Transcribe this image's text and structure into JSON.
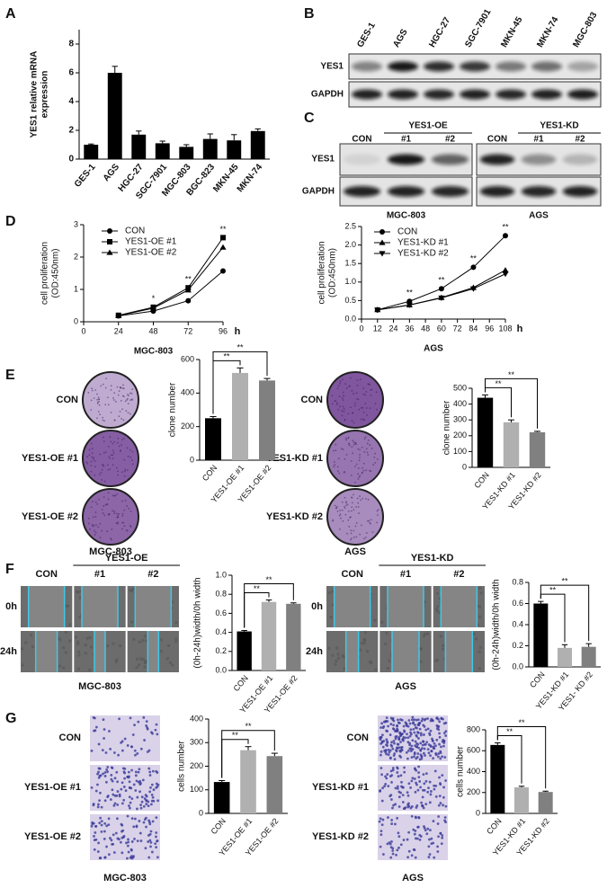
{
  "panel_labels": [
    "A",
    "B",
    "C",
    "D",
    "E",
    "F",
    "G"
  ],
  "blot_b": {
    "lanes": [
      "GES-1",
      "AGS",
      "HGC-27",
      "SGC-7901",
      "MKN-45",
      "MKN-74",
      "MGC-803"
    ],
    "rows": [
      "YES1",
      "GAPDH"
    ]
  },
  "blot_c": {
    "rows": [
      "YES1",
      "GAPDH"
    ],
    "groups": [
      {
        "header": "YES1-OE",
        "lanes": [
          "CON",
          "#1",
          "#2"
        ],
        "cell_line": "MGC-803"
      },
      {
        "header": "YES1-KD",
        "lanes": [
          "CON",
          "#1",
          "#2"
        ],
        "cell_line": "AGS"
      }
    ]
  },
  "colony_e": {
    "groups": [
      {
        "rows": [
          "CON",
          "YES1-OE #1",
          "YES1-OE #2"
        ],
        "cell_line": "MGC-803"
      },
      {
        "rows": [
          "CON",
          "YES1-KD #1",
          "YES1-KD #2"
        ],
        "cell_line": "AGS"
      }
    ]
  },
  "scratch_f": {
    "groups": [
      {
        "header": "YES1-OE",
        "lanes": [
          "CON",
          "#1",
          "#2"
        ],
        "times": [
          "0h",
          "24h"
        ],
        "cell_line": "MGC-803"
      },
      {
        "header": "YES1-KD",
        "lanes": [
          "CON",
          "#1",
          "#2"
        ],
        "times": [
          "0h",
          "24h"
        ],
        "cell_line": "AGS"
      }
    ]
  },
  "transwell_g": {
    "groups": [
      {
        "rows": [
          "CON",
          "YES1-OE #1",
          "YES1-OE #2"
        ],
        "cell_line": "MGC-803"
      },
      {
        "rows": [
          "CON",
          "YES1-KD #1",
          "YES1-KD #2"
        ],
        "cell_line": "AGS"
      }
    ]
  },
  "chart_data": [
    {
      "type": "bar",
      "ylabel": [
        "YES1 relative mRNA",
        "expression"
      ],
      "categories": [
        "GES-1",
        "AGS",
        "HGC-27",
        "SGC-7901",
        "MGC-803",
        "BGC-823",
        "MKN-45",
        "MKN-74"
      ],
      "values": [
        1,
        6,
        1.7,
        1.1,
        0.85,
        1.4,
        1.3,
        1.95
      ],
      "errors": [
        0.05,
        0.45,
        0.25,
        0.15,
        0.15,
        0.35,
        0.4,
        0.15
      ],
      "colors": [
        "#000000",
        "#000000",
        "#000000",
        "#000000",
        "#000000",
        "#000000",
        "#000000",
        "#000000"
      ],
      "ylim": [
        0,
        9
      ],
      "yticks": [
        0,
        2,
        4,
        6,
        8
      ]
    },
    {
      "type": "line",
      "ylabel": [
        "cell proliferation",
        "(OD:450nm)"
      ],
      "xlabel": "MGC-803",
      "x_unit": "h",
      "x": [
        24,
        48,
        72,
        96
      ],
      "xlim": [
        0,
        96
      ],
      "xticks": [
        0,
        24,
        48,
        72,
        96
      ],
      "ylim": [
        0,
        3
      ],
      "yticks": [
        0,
        1,
        2,
        3
      ],
      "series": [
        {
          "name": "CON",
          "marker": "circle",
          "color": "#000000",
          "values": [
            0.18,
            0.33,
            0.65,
            1.57
          ]
        },
        {
          "name": "YES1-OE #1",
          "marker": "square",
          "color": "#000000",
          "values": [
            0.2,
            0.45,
            1.05,
            2.6
          ]
        },
        {
          "name": "YES1-OE #2",
          "marker": "triangle",
          "color": "#000000",
          "values": [
            0.19,
            0.42,
            0.98,
            2.3
          ]
        }
      ],
      "annotations": [
        "*",
        "**",
        "**"
      ]
    },
    {
      "type": "line",
      "ylabel": [
        "cell proliferation",
        "(OD:450nm)"
      ],
      "xlabel": "AGS",
      "x_unit": "h",
      "x": [
        12,
        36,
        60,
        84,
        108
      ],
      "xlim": [
        0,
        108
      ],
      "xticks": [
        0,
        12,
        24,
        36,
        48,
        60,
        72,
        84,
        96,
        108
      ],
      "ylim": [
        0,
        2.5
      ],
      "yticks": [
        {
          "value": 0,
          "label": "0.0"
        },
        0.5,
        {
          "value": 1,
          "label": "1.0"
        },
        1.5,
        {
          "value": 2,
          "label": "2.0"
        },
        2.5
      ],
      "series": [
        {
          "name": "CON",
          "marker": "circle",
          "color": "#000000",
          "values": [
            0.25,
            0.48,
            0.82,
            1.4,
            2.25
          ]
        },
        {
          "name": "YES1-KD #1",
          "marker": "triangle",
          "color": "#000000",
          "values": [
            0.25,
            0.38,
            0.58,
            0.85,
            1.32
          ]
        },
        {
          "name": "YES1-KD #2",
          "marker": "triangle-down",
          "color": "#000000",
          "values": [
            0.25,
            0.38,
            0.57,
            0.82,
            1.22
          ]
        }
      ],
      "annotations": [
        "**",
        "**",
        "**",
        "**"
      ]
    },
    {
      "type": "bar",
      "ylabel": "clone number",
      "categories": [
        "CON",
        "YES1-OE #1",
        "YES1-OE #2"
      ],
      "values": [
        250,
        520,
        475
      ],
      "errors": [
        10,
        30,
        12
      ],
      "colors": [
        "#000000",
        "#b0b0b0",
        "#808080"
      ],
      "ylim": [
        0,
        600
      ],
      "yticks": [
        0,
        200,
        400,
        600
      ],
      "annotations": [
        "**",
        "**"
      ]
    },
    {
      "type": "bar",
      "ylabel": "clone number",
      "categories": [
        "CON",
        "YES1-KD #1",
        "YES1-KD #2"
      ],
      "values": [
        440,
        285,
        222
      ],
      "errors": [
        18,
        15,
        6
      ],
      "colors": [
        "#000000",
        "#b0b0b0",
        "#808080"
      ],
      "ylim": [
        0,
        500
      ],
      "yticks": [
        0,
        100,
        200,
        300,
        400,
        500
      ],
      "annotations": [
        "**",
        "**"
      ]
    },
    {
      "type": "bar",
      "ylabel": "(0h-24h)width/0h width",
      "categories": [
        "CON",
        "YES1-OE #1",
        "YES1-OE #2"
      ],
      "values": [
        0.41,
        0.72,
        0.7
      ],
      "errors": [
        0.01,
        0.02,
        0.01
      ],
      "colors": [
        "#000000",
        "#b0b0b0",
        "#808080"
      ],
      "ylim": [
        0,
        1
      ],
      "yticks": [
        {
          "value": 0,
          "label": "0.0"
        },
        0.2,
        0.4,
        0.6,
        0.8,
        {
          "value": 1,
          "label": "1.0"
        }
      ],
      "annotations": [
        "**",
        "**"
      ]
    },
    {
      "type": "bar",
      "ylabel": "(0h-24h)width/0h width",
      "categories": [
        "CON",
        "YES1-KD #1",
        "YES1- KD #2"
      ],
      "values": [
        0.6,
        0.18,
        0.19
      ],
      "errors": [
        0.02,
        0.03,
        0.03
      ],
      "colors": [
        "#000000",
        "#b0b0b0",
        "#808080"
      ],
      "ylim": [
        0,
        0.8
      ],
      "yticks": [
        {
          "value": 0,
          "label": "0.0"
        },
        0.2,
        0.4,
        0.6,
        0.8
      ],
      "annotations": [
        "**",
        "**"
      ]
    },
    {
      "type": "bar",
      "ylabel": "cells number",
      "categories": [
        "CON",
        "YES1-OE #1",
        "YES1-OE #2"
      ],
      "values": [
        133,
        268,
        243
      ],
      "errors": [
        6,
        15,
        12
      ],
      "colors": [
        "#000000",
        "#b0b0b0",
        "#808080"
      ],
      "ylim": [
        0,
        400
      ],
      "yticks": [
        0,
        100,
        200,
        300,
        400
      ],
      "annotations": [
        "**",
        "**"
      ]
    },
    {
      "type": "bar",
      "ylabel": "cells number",
      "categories": [
        "CON",
        "YES1-KD #1",
        "YES1-KD #2"
      ],
      "values": [
        655,
        250,
        205
      ],
      "errors": [
        20,
        10,
        8
      ],
      "colors": [
        "#000000",
        "#b0b0b0",
        "#808080"
      ],
      "ylim": [
        0,
        800
      ],
      "yticks": [
        0,
        200,
        400,
        600,
        800
      ],
      "annotations": [
        "**",
        "**"
      ]
    }
  ]
}
